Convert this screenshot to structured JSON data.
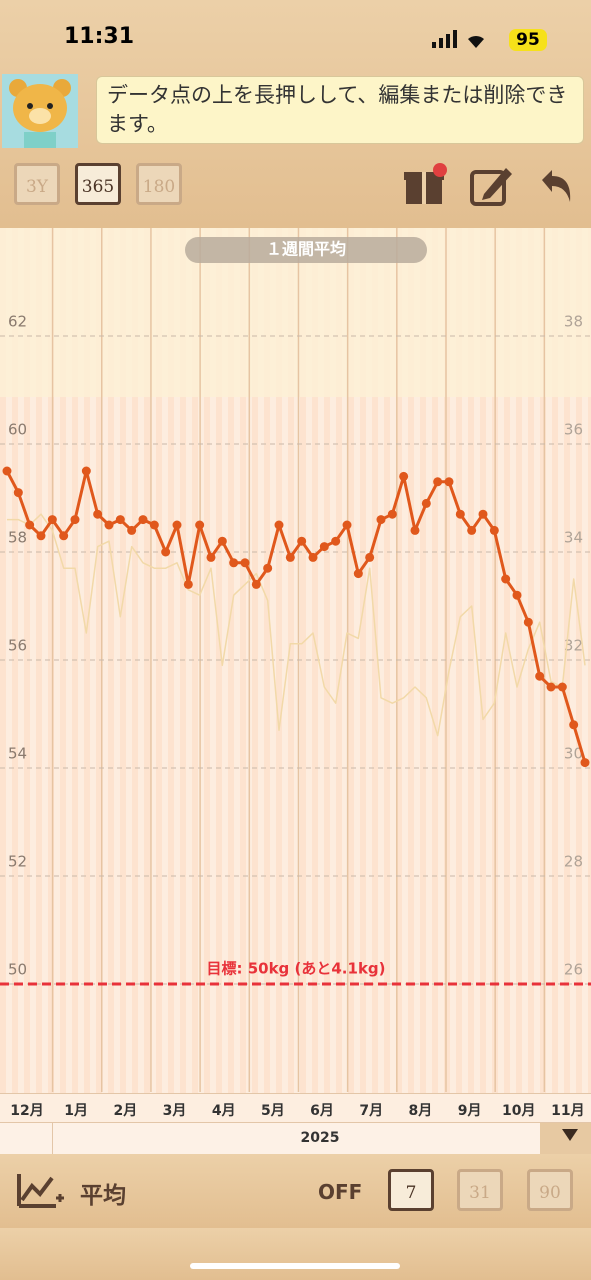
{
  "status_bar": {
    "time": "11:31",
    "battery": "95"
  },
  "tip": {
    "text": "データ点の上を長押しして、編集または削除できます。"
  },
  "toolbar": {
    "ranges": [
      "3Y",
      "365",
      "180"
    ]
  },
  "chart_data": {
    "type": "line",
    "subtitle": "１週間平均",
    "x_labels": [
      "12月",
      "1月",
      "2月",
      "3月",
      "4月",
      "5月",
      "6月",
      "7月",
      "8月",
      "9月",
      "10月",
      "11月"
    ],
    "year": "2025",
    "ylim": [
      48,
      64
    ],
    "yticks": [
      50,
      52,
      54,
      56,
      58,
      60,
      62
    ],
    "y2lim": [
      24,
      40
    ],
    "y2ticks": [
      26,
      28,
      30,
      32,
      34,
      36,
      38
    ],
    "grid": true,
    "series": [
      {
        "color": "#e0581c",
        "values": [
          59.5,
          59.1,
          58.5,
          58.3,
          58.6,
          58.3,
          58.6,
          59.5,
          58.7,
          58.5,
          58.6,
          58.4,
          58.6,
          58.5,
          58.0,
          58.5,
          57.4,
          58.5,
          57.9,
          58.2,
          57.8,
          57.8,
          57.4,
          57.7,
          58.5,
          57.9,
          58.2,
          57.9,
          58.1,
          58.2,
          58.5,
          57.6,
          57.9,
          58.6,
          58.7,
          59.4,
          58.4,
          58.9,
          59.3,
          59.3,
          58.7,
          58.4,
          58.7,
          58.4,
          57.5,
          57.2,
          56.7,
          55.7,
          55.5,
          55.5,
          54.8,
          54.1
        ]
      },
      {
        "color": "#f2d9a8",
        "axis": "y2",
        "values": [
          34.6,
          34.6,
          34.5,
          34.7,
          34.4,
          33.7,
          33.7,
          32.5,
          34.1,
          34.2,
          32.8,
          34.1,
          33.8,
          33.7,
          33.7,
          33.8,
          33.3,
          33.2,
          33.7,
          31.9,
          33.2,
          33.4,
          33.6,
          33.1,
          30.7,
          32.3,
          32.3,
          32.5,
          31.5,
          31.2,
          32.5,
          32.4,
          33.7,
          31.3,
          31.2,
          31.3,
          31.5,
          31.3,
          30.6,
          31.8,
          32.8,
          33.0,
          30.9,
          31.2,
          32.5,
          31.5,
          32.2,
          32.7,
          31.6,
          31.5,
          33.5,
          31.9
        ]
      }
    ],
    "goal": {
      "value": 50,
      "label": "目標: 50kg (あと4.1kg)"
    }
  },
  "bottom_bar": {
    "mode": "平均",
    "state": "OFF",
    "periods": [
      "7",
      "31",
      "90"
    ]
  }
}
